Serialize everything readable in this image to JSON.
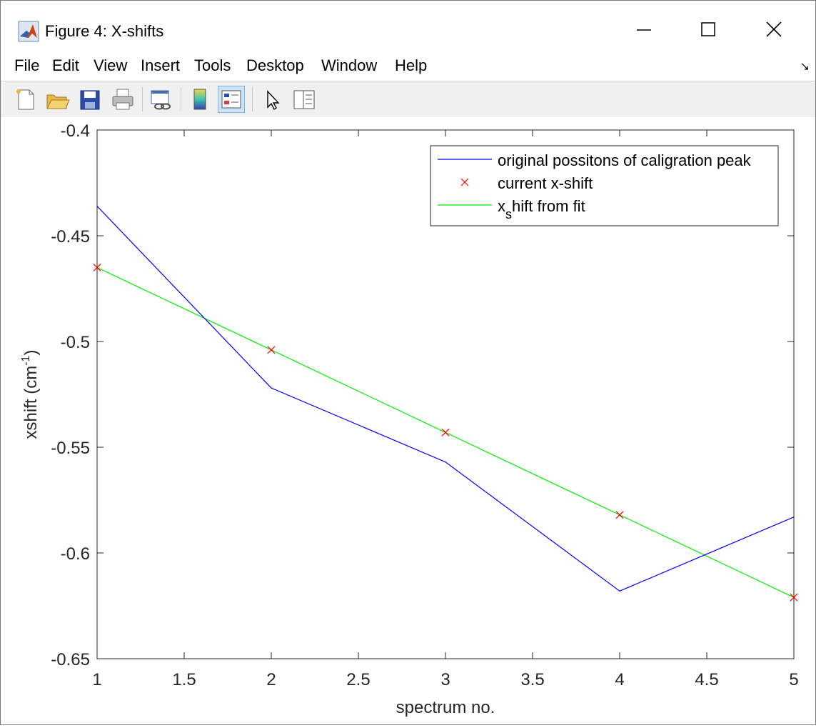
{
  "window": {
    "title": "Figure 4: X-shifts"
  },
  "menu": {
    "items": [
      "File",
      "Edit",
      "View",
      "Insert",
      "Tools",
      "Desktop",
      "Window",
      "Help"
    ]
  },
  "toolbar": {
    "buttons": [
      "new-figure-icon",
      "open-file-icon",
      "save-icon",
      "print-icon",
      "link-plot-icon",
      "insert-colorbar-icon",
      "insert-legend-icon",
      "edit-plot-arrow-icon",
      "property-inspector-icon"
    ]
  },
  "colors": {
    "series_original": "#0000ff",
    "series_current": "#ff0000",
    "series_fit": "#00ee00"
  },
  "chart_data": {
    "type": "line",
    "title": "",
    "xlabel": "spectrum no.",
    "ylabel": "xshift (cm-1)",
    "xlim": [
      1,
      5
    ],
    "ylim": [
      -0.65,
      -0.4
    ],
    "xticks": [
      "1",
      "1.5",
      "2",
      "2.5",
      "3",
      "3.5",
      "4",
      "4.5",
      "5"
    ],
    "yticks": [
      "-0.4",
      "-0.45",
      "-0.5",
      "-0.55",
      "-0.6",
      "-0.65"
    ],
    "grid": false,
    "legend_position": "top-right",
    "series": [
      {
        "name": "original possitons of caligration peak",
        "style": "line",
        "color": "#0000ff",
        "x": [
          1,
          2,
          3,
          4,
          5
        ],
        "y": [
          -0.436,
          -0.522,
          -0.557,
          -0.618,
          -0.583
        ]
      },
      {
        "name": "current x-shift",
        "style": "x-marker",
        "color": "#ff0000",
        "x": [
          1,
          2,
          3,
          4,
          5
        ],
        "y": [
          -0.465,
          -0.504,
          -0.543,
          -0.582,
          -0.621
        ]
      },
      {
        "name": "xshift from fit",
        "style": "line",
        "color": "#00ee00",
        "x": [
          1,
          2,
          3,
          4,
          5
        ],
        "y": [
          -0.465,
          -0.504,
          -0.543,
          -0.582,
          -0.621
        ]
      }
    ]
  }
}
